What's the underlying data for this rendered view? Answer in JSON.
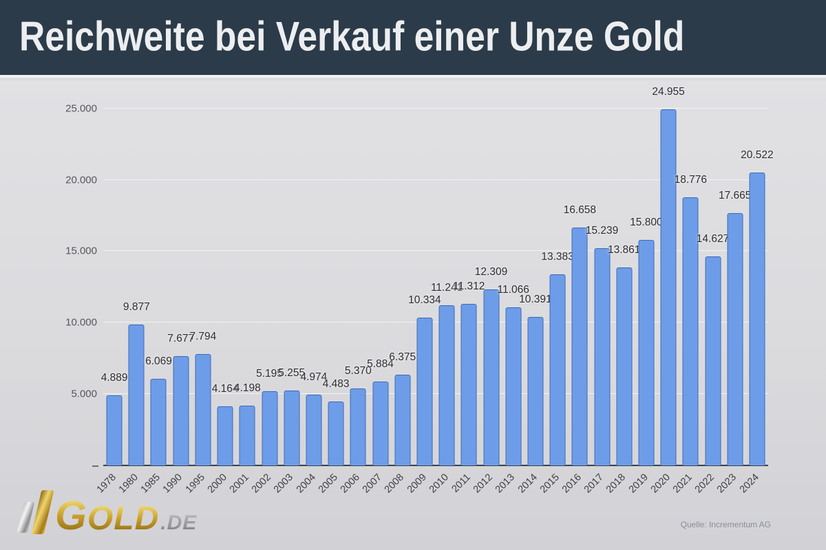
{
  "header": {
    "title": "Reichweite bei Verkauf einer Unze Gold"
  },
  "colors": {
    "header_bg": "#2c3b49",
    "page_bg": "#dcdcde",
    "bar_fill": "#6d9de8",
    "bar_border": "#3e69b8",
    "gold": "#caa12c",
    "silver": "#9b9b9b"
  },
  "chart_data": {
    "type": "bar",
    "title": "Reichweite bei Verkauf einer Unze Gold",
    "categories": [
      "1978",
      "1980",
      "1985",
      "1990",
      "1995",
      "2000",
      "2001",
      "2002",
      "2003",
      "2004",
      "2005",
      "2006",
      "2007",
      "2008",
      "2009",
      "2010",
      "2011",
      "2012",
      "2013",
      "2014",
      "2015",
      "2016",
      "2017",
      "2018",
      "2019",
      "2020",
      "2021",
      "2022",
      "2023",
      "2024"
    ],
    "values": [
      4889,
      9877,
      6069,
      7677,
      7794,
      4164,
      4198,
      5195,
      5255,
      4974,
      4483,
      5370,
      5884,
      6375,
      10334,
      11241,
      11312,
      12309,
      11066,
      10391,
      13383,
      16658,
      15239,
      13861,
      15800,
      24955,
      18776,
      14627,
      17665,
      20522
    ],
    "value_labels": [
      "4.889",
      "9.877",
      "6.069",
      "7.677",
      "7.794",
      "4.164",
      "4.198",
      "5.195",
      "5.255",
      "4.974",
      "4.483",
      "5.370",
      "5.884",
      "6.375",
      "10.334",
      "11.241",
      "11.312",
      "12.309",
      "11.066",
      "10.391",
      "13.383",
      "16.658",
      "15.239",
      "13.861",
      "15.800",
      "24.955",
      "18.776",
      "14.627",
      "17.665",
      "20.522"
    ],
    "xlabel": "",
    "ylabel": "",
    "ylim": [
      0,
      26000
    ],
    "yticks": [
      {
        "value": 5000,
        "label": "5.000"
      },
      {
        "value": 10000,
        "label": "10.000"
      },
      {
        "value": 15000,
        "label": "15.000"
      },
      {
        "value": 20000,
        "label": "20.000"
      },
      {
        "value": 25000,
        "label": "25.000"
      }
    ],
    "grid": "horizontal",
    "legend": "none"
  },
  "footer": {
    "logo_main": "G",
    "logo_rest": "OLD",
    "logo_suffix": ".DE",
    "source": "Quelle: Incrementum AG"
  }
}
